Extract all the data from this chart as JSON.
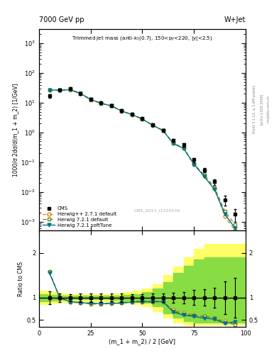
{
  "title_top": "7000 GeV pp",
  "title_right": "W+Jet",
  "watermark": "CMS_2013_I1224539",
  "ylabel_main": "1000/σ 2dσ/d(m_1 + m_2) [1/GeV]",
  "ylabel_ratio": "Ratio to CMS",
  "xlabel": "(m_1 + m_2) / 2 [GeV]",
  "xlim": [
    0,
    100
  ],
  "ylim_main": [
    0.0005,
    3000.0
  ],
  "ylim_ratio": [
    0.35,
    2.5
  ],
  "x_cms": [
    5,
    10,
    15,
    20,
    25,
    30,
    35,
    40,
    45,
    50,
    55,
    60,
    65,
    70,
    75,
    80,
    85,
    90,
    95
  ],
  "y_cms": [
    17,
    26,
    30,
    20,
    13,
    10,
    8,
    5.5,
    4.2,
    3.0,
    1.8,
    1.2,
    0.55,
    0.38,
    0.12,
    0.055,
    0.022,
    0.0055,
    0.0018
  ],
  "y_cms_err": [
    2.5,
    2.5,
    2.5,
    1.8,
    1.2,
    0.9,
    0.7,
    0.5,
    0.35,
    0.25,
    0.18,
    0.12,
    0.06,
    0.05,
    0.02,
    0.01,
    0.005,
    0.002,
    0.0008
  ],
  "y_hw1": [
    27,
    26,
    27,
    20,
    12.5,
    9.5,
    7.8,
    5.2,
    4.0,
    2.8,
    1.75,
    1.15,
    0.43,
    0.29,
    0.085,
    0.035,
    0.013,
    0.0015,
    0.0005
  ],
  "y_hw2": [
    27,
    26,
    28,
    21,
    13.0,
    9.8,
    7.9,
    5.3,
    4.05,
    2.85,
    1.78,
    1.18,
    0.44,
    0.3,
    0.088,
    0.037,
    0.014,
    0.0022,
    0.0008
  ],
  "y_hw3": [
    27,
    26,
    27.5,
    20.5,
    12.8,
    9.6,
    7.85,
    5.25,
    4.02,
    2.82,
    1.76,
    1.16,
    0.43,
    0.29,
    0.086,
    0.033,
    0.012,
    0.0018,
    0.0006
  ],
  "color_hw1": "#d4820a",
  "color_hw2": "#5a8a00",
  "color_hw3": "#007090",
  "ratio_hw1": [
    1.59,
    1.0,
    0.9,
    0.88,
    0.86,
    0.85,
    0.87,
    0.88,
    0.9,
    0.9,
    0.91,
    0.91,
    0.72,
    0.66,
    0.62,
    0.58,
    0.55,
    0.47,
    0.42
  ],
  "ratio_hw2": [
    1.58,
    1.0,
    0.91,
    0.89,
    0.88,
    0.87,
    0.88,
    0.89,
    0.91,
    0.92,
    0.92,
    0.92,
    0.7,
    0.63,
    0.6,
    0.58,
    0.54,
    0.44,
    0.4
  ],
  "ratio_hw3": [
    1.56,
    1.0,
    0.91,
    0.89,
    0.87,
    0.87,
    0.87,
    0.88,
    0.9,
    0.91,
    0.91,
    0.91,
    0.68,
    0.61,
    0.58,
    0.54,
    0.52,
    0.42,
    0.46
  ],
  "band_x_edges": [
    0,
    5,
    10,
    15,
    20,
    25,
    30,
    35,
    40,
    45,
    50,
    55,
    60,
    65,
    70,
    75,
    80,
    85,
    90,
    95,
    100
  ],
  "band_yellow_hi": [
    1.15,
    1.15,
    1.12,
    1.1,
    1.08,
    1.08,
    1.08,
    1.08,
    1.1,
    1.12,
    1.15,
    1.2,
    1.3,
    1.5,
    1.7,
    1.9,
    2.1,
    2.2,
    2.2,
    2.2,
    2.2
  ],
  "band_yellow_lo": [
    0.85,
    0.85,
    0.88,
    0.9,
    0.92,
    0.92,
    0.92,
    0.92,
    0.9,
    0.88,
    0.85,
    0.8,
    0.7,
    0.55,
    0.45,
    0.4,
    0.4,
    0.4,
    0.4,
    0.4,
    0.4
  ],
  "band_green_hi": [
    1.08,
    1.08,
    1.06,
    1.05,
    1.04,
    1.04,
    1.04,
    1.04,
    1.05,
    1.06,
    1.08,
    1.12,
    1.2,
    1.35,
    1.55,
    1.72,
    1.85,
    1.9,
    1.9,
    1.9,
    1.9
  ],
  "band_green_lo": [
    0.92,
    0.92,
    0.94,
    0.95,
    0.96,
    0.96,
    0.96,
    0.96,
    0.95,
    0.94,
    0.92,
    0.88,
    0.8,
    0.65,
    0.55,
    0.48,
    0.45,
    0.45,
    0.45,
    0.45,
    0.45
  ],
  "right_label1": "Rivet 3.1.10, ≥ 2.6M events",
  "right_label2": "[arXiv:1306.3436]",
  "right_label3": "mcplots.cern.ch"
}
